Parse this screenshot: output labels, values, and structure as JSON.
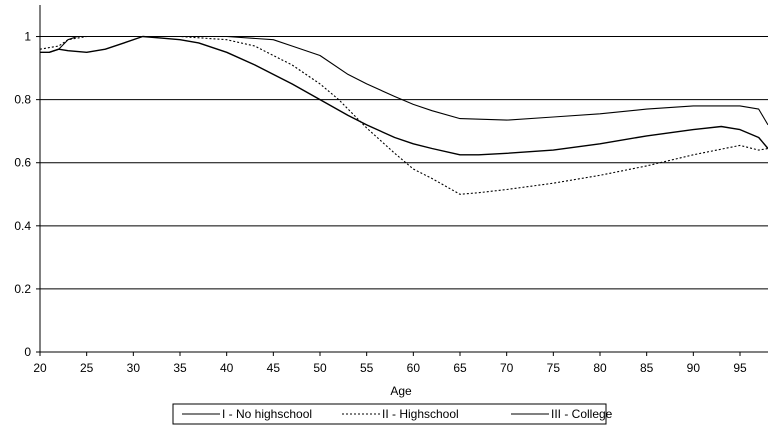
{
  "chart_data": {
    "type": "line",
    "title": "",
    "xlabel": "Age",
    "ylabel": "",
    "xlim": [
      20,
      98
    ],
    "ylim": [
      0,
      1.1
    ],
    "xticks": [
      20,
      25,
      30,
      35,
      40,
      45,
      50,
      55,
      60,
      65,
      70,
      75,
      80,
      85,
      90,
      95
    ],
    "yticks": [
      0,
      0.2,
      0.4,
      0.6,
      0.8,
      1
    ],
    "ytick_labels": [
      "0",
      "0.2",
      "0.4",
      "0.6",
      "0.8",
      "1"
    ],
    "grid": "horizontal",
    "legend_position": "bottom",
    "series": [
      {
        "name": "I - No highschool",
        "style": "solid",
        "color": "#000000",
        "x": [
          20,
          21,
          22,
          23,
          25,
          27,
          29,
          31,
          33,
          35,
          37,
          40,
          43,
          45,
          47,
          50,
          53,
          55,
          58,
          60,
          62,
          65,
          67,
          70,
          75,
          80,
          85,
          90,
          93,
          95,
          97,
          98
        ],
        "y": [
          0.95,
          0.95,
          0.96,
          0.955,
          0.95,
          0.96,
          0.98,
          1.0,
          0.995,
          0.99,
          0.98,
          0.95,
          0.91,
          0.88,
          0.85,
          0.8,
          0.75,
          0.72,
          0.68,
          0.66,
          0.645,
          0.625,
          0.625,
          0.63,
          0.64,
          0.66,
          0.685,
          0.705,
          0.715,
          0.705,
          0.68,
          0.645
        ]
      },
      {
        "name": "II - Highschool",
        "style": "dotted",
        "color": "#000000",
        "x": [
          20,
          22,
          23,
          25,
          30,
          35,
          40,
          43,
          45,
          47,
          50,
          52,
          55,
          58,
          60,
          62,
          65,
          67,
          70,
          75,
          80,
          85,
          90,
          95,
          97,
          98
        ],
        "y": [
          0.96,
          0.97,
          0.99,
          1.0,
          1.0,
          1.0,
          0.99,
          0.97,
          0.94,
          0.91,
          0.85,
          0.8,
          0.71,
          0.63,
          0.58,
          0.55,
          0.5,
          0.505,
          0.515,
          0.535,
          0.56,
          0.59,
          0.625,
          0.655,
          0.64,
          0.645
        ]
      },
      {
        "name": "III - College",
        "style": "solid",
        "color": "#000000",
        "x": [
          21,
          22,
          23,
          24,
          25,
          30,
          35,
          40,
          45,
          47,
          50,
          53,
          55,
          58,
          60,
          62,
          65,
          70,
          75,
          80,
          85,
          90,
          93,
          95,
          97,
          98
        ],
        "y": [
          0.95,
          0.96,
          0.99,
          1.0,
          1.0,
          1.0,
          1.0,
          1.0,
          0.99,
          0.97,
          0.94,
          0.88,
          0.85,
          0.81,
          0.785,
          0.765,
          0.74,
          0.735,
          0.745,
          0.755,
          0.77,
          0.78,
          0.78,
          0.78,
          0.77,
          0.72
        ]
      }
    ]
  }
}
